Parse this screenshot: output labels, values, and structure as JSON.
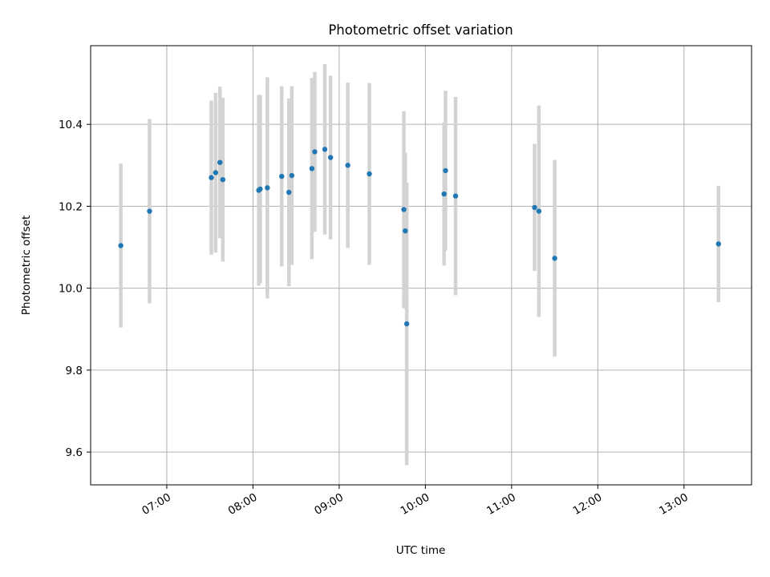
{
  "chart_data": {
    "type": "scatter",
    "title": "Photometric offset variation",
    "xlabel": "UTC time",
    "ylabel": "Photometric offset",
    "xlim": [
      "06:07",
      "13:47"
    ],
    "ylim": [
      9.52,
      10.592
    ],
    "grid": true,
    "x_ticks": [
      "07:00",
      "08:00",
      "09:00",
      "10:00",
      "11:00",
      "12:00",
      "13:00"
    ],
    "y_ticks": [
      "9.6",
      "9.8",
      "10.0",
      "10.2",
      "10.4"
    ],
    "colors": {
      "point": "#1f77b4",
      "errorbar": "#d3d3d3"
    },
    "series": [
      {
        "points": [
          {
            "x": "06:28",
            "y": 10.104,
            "err": 0.2
          },
          {
            "x": "06:48",
            "y": 10.188,
            "err": 0.225
          },
          {
            "x": "07:31",
            "y": 10.27,
            "err": 0.188
          },
          {
            "x": "07:34",
            "y": 10.282,
            "err": 0.195
          },
          {
            "x": "07:37",
            "y": 10.307,
            "err": 0.185
          },
          {
            "x": "07:39",
            "y": 10.265,
            "err": 0.2
          },
          {
            "x": "08:04",
            "y": 10.239,
            "err": 0.233
          },
          {
            "x": "08:05",
            "y": 10.242,
            "err": 0.23
          },
          {
            "x": "08:10",
            "y": 10.245,
            "err": 0.27
          },
          {
            "x": "08:20",
            "y": 10.273,
            "err": 0.22
          },
          {
            "x": "08:25",
            "y": 10.234,
            "err": 0.229
          },
          {
            "x": "08:27",
            "y": 10.275,
            "err": 0.218
          },
          {
            "x": "08:41",
            "y": 10.292,
            "err": 0.221
          },
          {
            "x": "08:43",
            "y": 10.333,
            "err": 0.195
          },
          {
            "x": "08:50",
            "y": 10.339,
            "err": 0.208
          },
          {
            "x": "08:54",
            "y": 10.319,
            "err": 0.2
          },
          {
            "x": "09:06",
            "y": 10.3,
            "err": 0.202
          },
          {
            "x": "09:21",
            "y": 10.279,
            "err": 0.222
          },
          {
            "x": "09:45",
            "y": 10.192,
            "err": 0.24
          },
          {
            "x": "09:46",
            "y": 10.14,
            "err": 0.19
          },
          {
            "x": "09:47",
            "y": 9.913,
            "err": 0.345
          },
          {
            "x": "10:13",
            "y": 10.23,
            "err": 0.175
          },
          {
            "x": "10:14",
            "y": 10.287,
            "err": 0.195
          },
          {
            "x": "10:21",
            "y": 10.225,
            "err": 0.242
          },
          {
            "x": "11:16",
            "y": 10.197,
            "err": 0.155
          },
          {
            "x": "11:19",
            "y": 10.188,
            "err": 0.258
          },
          {
            "x": "11:30",
            "y": 10.073,
            "err": 0.24
          },
          {
            "x": "13:24",
            "y": 10.108,
            "err": 0.142
          }
        ]
      }
    ]
  }
}
